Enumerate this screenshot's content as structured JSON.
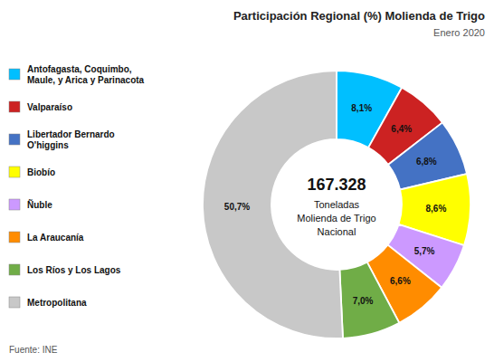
{
  "chart_data": {
    "type": "pie",
    "title": "Participación Regional (%) Molienda de Trigo",
    "subtitle": "Enero  2020",
    "center_text": [
      "167.328",
      "Toneladas",
      "Molienda de Trigo",
      "Nacional"
    ],
    "source": "Fuente: INE",
    "categories": [
      "Antofagasta, Coquimbo,\nMaule, y  Arica y Parinacota",
      "Valparaíso",
      "Libertador Bernardo\nO'higgins",
      "Biobío",
      "Ñuble",
      "La Araucanía",
      "Los Ríos y Los Lagos",
      "Metropolitana"
    ],
    "values": [
      8.1,
      6.4,
      6.8,
      8.6,
      5.7,
      6.6,
      7.0,
      50.7
    ],
    "value_labels": [
      "8,1%",
      "6,4%",
      "6,8%",
      "8,6%",
      "5,7%",
      "6,6%",
      "7,0%",
      "50,7%"
    ],
    "colors": [
      "#00BFFF",
      "#CC2222",
      "#4472C4",
      "#FFFF00",
      "#CC99FF",
      "#FF8C00",
      "#70AD47",
      "#C8C8C8"
    ],
    "data_labels": true,
    "legend": "left"
  }
}
